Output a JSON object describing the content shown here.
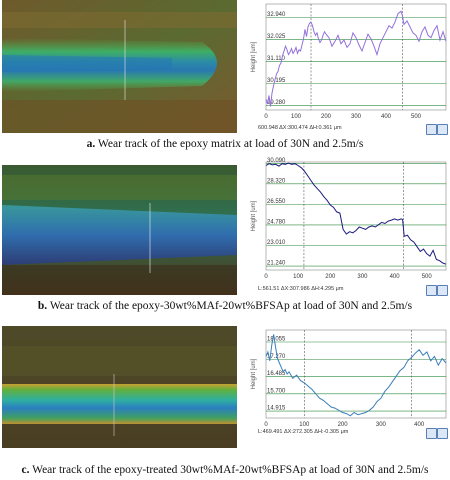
{
  "panels": [
    {
      "id": "a",
      "caption_letter": "a.",
      "caption_text": " Wear track of the epoxy matrix at load of 30N and 2.5m/s",
      "status": "600.948  ΔX:300.474  ΔH:0.361  μm",
      "ylabel": "Height [um]",
      "colors": {
        "line": "#9370db",
        "accent": "#4a8fd8"
      },
      "chart_data": {
        "type": "line",
        "ylabel": "Height [um]",
        "yticks": [
          29.28,
          30.195,
          31.11,
          32.025,
          32.94
        ],
        "ylim": [
          29.1,
          33.5
        ],
        "xticks": [
          0,
          100,
          200,
          300,
          400,
          500
        ],
        "xlim": [
          0,
          600
        ],
        "cursors": [
          150,
          455
        ],
        "x": [
          0,
          5,
          10,
          15,
          20,
          25,
          30,
          35,
          40,
          45,
          50,
          55,
          60,
          65,
          70,
          75,
          80,
          85,
          90,
          95,
          100,
          105,
          110,
          115,
          120,
          125,
          130,
          135,
          140,
          145,
          150,
          155,
          160,
          165,
          170,
          175,
          180,
          185,
          190,
          195,
          200,
          210,
          220,
          230,
          240,
          250,
          260,
          270,
          280,
          290,
          300,
          310,
          320,
          330,
          340,
          350,
          360,
          370,
          380,
          390,
          400,
          410,
          420,
          430,
          440,
          450,
          455,
          460,
          470,
          480,
          490,
          500,
          510,
          520,
          530,
          540,
          550,
          560,
          570,
          580,
          590,
          600
        ],
        "y": [
          29.55,
          29.35,
          29.7,
          29.25,
          29.8,
          30.1,
          30.35,
          30.6,
          30.7,
          30.95,
          31.05,
          31.35,
          31.55,
          31.75,
          31.6,
          31.4,
          31.5,
          31.65,
          31.45,
          31.55,
          31.7,
          31.45,
          31.6,
          31.55,
          31.8,
          32.05,
          32.45,
          32.15,
          32.55,
          32.7,
          32.75,
          32.6,
          32.35,
          32.2,
          32.3,
          32.05,
          31.9,
          32.0,
          32.2,
          32.35,
          32.25,
          32.1,
          31.75,
          31.95,
          32.2,
          31.85,
          32.0,
          31.7,
          31.85,
          32.3,
          32.1,
          31.8,
          31.55,
          31.9,
          32.25,
          32.05,
          31.75,
          31.4,
          31.85,
          32.1,
          32.35,
          32.6,
          32.5,
          32.75,
          33.1,
          33.2,
          33.0,
          32.65,
          32.8,
          32.55,
          32.3,
          32.2,
          31.95,
          32.35,
          32.55,
          32.2,
          32.1,
          32.4,
          32.6,
          32.0,
          32.35,
          31.95
        ]
      }
    },
    {
      "id": "b",
      "caption_letter": "b.",
      "caption_text": " Wear track of the epoxy-30wt%MAf-20wt%BFSAp at load of 30N and 2.5m/s",
      "status": "L:561.51  ΔX:307.986  ΔH:4.295  μm",
      "ylabel": "Height [um]",
      "colors": {
        "line": "#1a1a80"
      },
      "chart_data": {
        "type": "line",
        "ylabel": "Height [um]",
        "yticks": [
          21.24,
          23.01,
          24.78,
          26.55,
          28.32,
          30.09
        ],
        "ylim": [
          20.9,
          30.2
        ],
        "xticks": [
          0,
          100,
          200,
          300,
          400,
          500
        ],
        "xlim": [
          0,
          560
        ],
        "cursors": [
          118,
          428
        ],
        "x": [
          0,
          10,
          20,
          30,
          40,
          50,
          60,
          70,
          80,
          90,
          100,
          110,
          120,
          130,
          140,
          150,
          160,
          170,
          180,
          190,
          200,
          210,
          220,
          230,
          240,
          250,
          260,
          270,
          280,
          290,
          300,
          310,
          320,
          330,
          340,
          350,
          360,
          370,
          380,
          390,
          400,
          410,
          420,
          425,
          430,
          440,
          450,
          460,
          470,
          480,
          490,
          500,
          510,
          520,
          530,
          540,
          550,
          560
        ],
        "y": [
          29.9,
          30.05,
          29.95,
          30.0,
          29.85,
          30.05,
          30.0,
          30.1,
          30.0,
          30.05,
          29.9,
          29.7,
          29.4,
          29.0,
          28.6,
          28.2,
          27.9,
          27.6,
          27.2,
          26.9,
          26.5,
          26.3,
          25.9,
          25.8,
          24.4,
          24.0,
          24.2,
          24.1,
          24.3,
          24.6,
          24.5,
          24.4,
          24.6,
          24.7,
          24.6,
          24.8,
          25.0,
          24.9,
          25.1,
          25.2,
          25.3,
          25.2,
          25.3,
          25.25,
          23.8,
          23.9,
          23.5,
          23.3,
          22.9,
          22.5,
          22.7,
          22.3,
          22.1,
          22.6,
          21.8,
          21.7,
          21.5,
          21.4
        ]
      }
    },
    {
      "id": "c",
      "caption_letter": "c.",
      "caption_text": " Wear track of the epoxy-treated 30wt%MAf-20wt%BFSAp at load of 30N and 2.5m/s",
      "status": "L:469.491  ΔX:272.305  ΔH:-0.305  μm",
      "ylabel": "Height [um]",
      "colors": {
        "line": "#3a7fb8"
      },
      "chart_data": {
        "type": "line",
        "ylabel": "Height [um]",
        "yticks": [
          14.915,
          15.7,
          16.485,
          17.27,
          18.055
        ],
        "ylim": [
          14.6,
          18.6
        ],
        "xticks": [
          0,
          100,
          200,
          300,
          400
        ],
        "xlim": [
          0,
          470
        ],
        "cursors": [
          100,
          380
        ],
        "x": [
          0,
          5,
          10,
          15,
          20,
          25,
          30,
          35,
          40,
          45,
          50,
          55,
          60,
          70,
          80,
          90,
          100,
          110,
          120,
          130,
          140,
          150,
          160,
          170,
          180,
          190,
          200,
          210,
          220,
          230,
          240,
          250,
          260,
          270,
          280,
          290,
          300,
          310,
          320,
          330,
          340,
          350,
          360,
          370,
          380,
          390,
          400,
          410,
          420,
          430,
          440,
          450,
          460,
          470
        ],
        "y": [
          17.4,
          17.6,
          17.2,
          17.9,
          18.4,
          17.8,
          17.3,
          17.1,
          16.9,
          16.7,
          16.8,
          16.6,
          16.7,
          16.4,
          16.55,
          16.3,
          16.2,
          16.05,
          15.9,
          15.7,
          15.5,
          15.4,
          15.25,
          15.1,
          15.05,
          14.95,
          14.85,
          14.8,
          14.7,
          14.85,
          14.75,
          14.8,
          14.85,
          14.95,
          15.1,
          15.35,
          15.5,
          15.8,
          16.0,
          16.25,
          16.5,
          16.75,
          16.9,
          17.2,
          17.35,
          17.55,
          17.7,
          17.45,
          17.6,
          17.2,
          17.4,
          17.0,
          17.3,
          17.1
        ]
      }
    }
  ]
}
